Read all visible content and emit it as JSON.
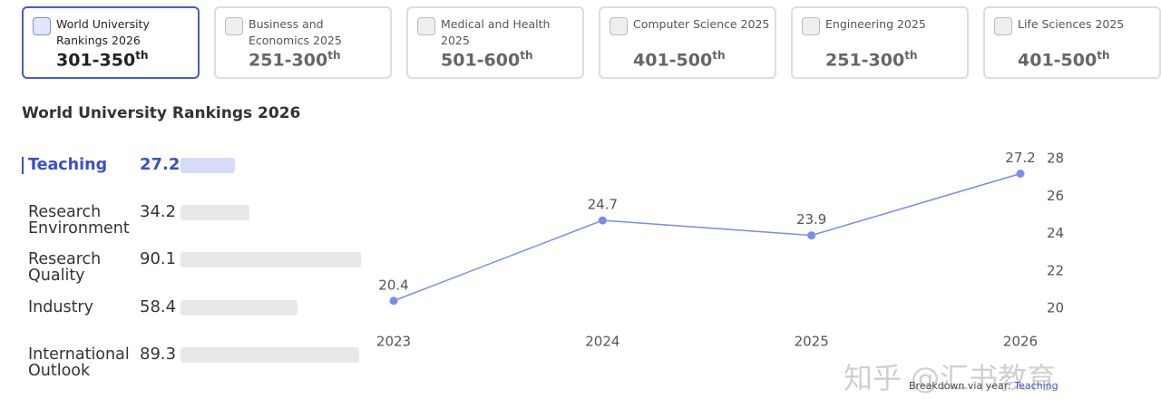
{
  "tabs": [
    {
      "label": "World University Rankings 2026",
      "rank": "301-350",
      "suffix": "th"
    },
    {
      "label": "Business and Economics 2025",
      "rank": "251-300",
      "suffix": "th"
    },
    {
      "label": "Medical and Health 2025",
      "rank": "501-600",
      "suffix": "th"
    },
    {
      "label": "Computer Science 2025",
      "rank": "401-500",
      "suffix": "th"
    },
    {
      "label": "Engineering 2025",
      "rank": "251-300",
      "suffix": "th"
    },
    {
      "label": "Life Sciences 2025",
      "rank": "401-500",
      "suffix": "th"
    }
  ],
  "heading": "World University Rankings 2026",
  "metrics": [
    {
      "name": "Teaching",
      "value": 27.2
    },
    {
      "name": "Research Environment",
      "value": 34.2
    },
    {
      "name": "Research Quality",
      "value": 90.1
    },
    {
      "name": "Industry",
      "value": 58.4
    },
    {
      "name": "International Outlook",
      "value": 89.3
    }
  ],
  "chart_data": {
    "type": "line",
    "categories": [
      "2023",
      "2024",
      "2025",
      "2026"
    ],
    "values": [
      20.4,
      24.7,
      23.9,
      27.2
    ],
    "color": "#7b8ce6",
    "ylim": [
      20,
      28
    ],
    "yticks": [
      20,
      22,
      24,
      26,
      28
    ]
  },
  "footnote": {
    "text": "Breakdown via year:",
    "link": "Teaching"
  },
  "watermark": "知乎 @汇书教育"
}
